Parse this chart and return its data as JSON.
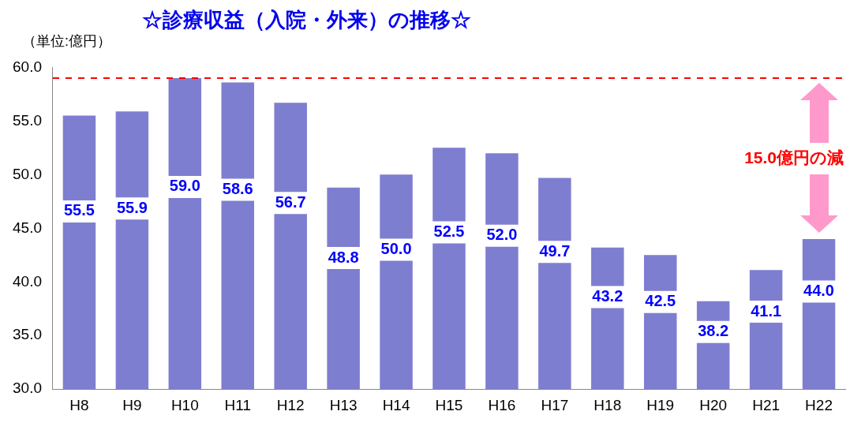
{
  "chart_data": {
    "type": "bar",
    "title": "☆診療収益（入院・外来）の推移☆",
    "ylabel": "（単位:億円）",
    "categories": [
      "H8",
      "H9",
      "H10",
      "H11",
      "H12",
      "H13",
      "H14",
      "H15",
      "H16",
      "H17",
      "H18",
      "H19",
      "H20",
      "H21",
      "H22"
    ],
    "values": [
      55.5,
      55.9,
      59.0,
      58.6,
      56.7,
      48.8,
      50.0,
      52.5,
      52.0,
      49.7,
      43.2,
      42.5,
      38.2,
      41.1,
      44.0
    ],
    "color": "#7e7ed0",
    "value_labels": [
      "55.5",
      "55.9",
      "59.0",
      "58.6",
      "56.7",
      "48.8",
      "50.0",
      "52.5",
      "52.0",
      "49.7",
      "43.2",
      "42.5",
      "38.2",
      "41.1",
      "44.0"
    ],
    "ylim": [
      30,
      60
    ],
    "yticks": [
      {
        "value": 30,
        "label": "30.0"
      },
      {
        "value": 35,
        "label": "35.0"
      },
      {
        "value": 40,
        "label": "40.0"
      },
      {
        "value": 45,
        "label": "45.0"
      },
      {
        "value": 50,
        "label": "50.0"
      },
      {
        "value": 55,
        "label": "55.0"
      },
      {
        "value": 60,
        "label": "60.0"
      }
    ],
    "grid": false,
    "legend": false,
    "ref_lines": [
      {
        "axis": "y",
        "value": 59.0,
        "color": "#ff0000",
        "line_style": "dashed"
      }
    ],
    "annotations": [
      "15.0億円の減"
    ]
  }
}
